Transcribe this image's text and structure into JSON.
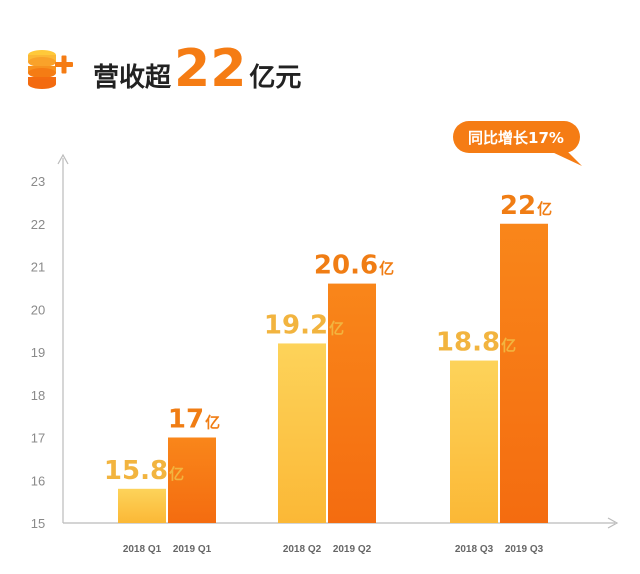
{
  "header": {
    "title_prefix": "营收超",
    "title_number": "22",
    "title_suffix": "亿元",
    "icon": "coin-stack-plus-icon"
  },
  "callout": {
    "text": "同比增长17%"
  },
  "colors": {
    "accent": "#f57c14",
    "bar_2018": "#fdc74a",
    "bar_2019": "#f57c14",
    "label_2018": "#f2b43f",
    "label_2019": "#f07d14",
    "axis": "#bbbbbb"
  },
  "chart_data": {
    "type": "bar",
    "ylim": [
      15,
      23
    ],
    "yticks": [
      15,
      16,
      17,
      18,
      19,
      20,
      21,
      22,
      23
    ],
    "groups": [
      {
        "bars": [
          {
            "category": "2018 Q1",
            "value": 15.8,
            "label": "15.8",
            "unit": "亿",
            "series": "2018"
          },
          {
            "category": "2019 Q1",
            "value": 17,
            "label": "17",
            "unit": "亿",
            "series": "2019"
          }
        ]
      },
      {
        "bars": [
          {
            "category": "2018 Q2",
            "value": 19.2,
            "label": "19.2",
            "unit": "亿",
            "series": "2018"
          },
          {
            "category": "2019 Q2",
            "value": 20.6,
            "label": "20.6",
            "unit": "亿",
            "series": "2019"
          }
        ]
      },
      {
        "bars": [
          {
            "category": "2018 Q3",
            "value": 18.8,
            "label": "18.8",
            "unit": "亿",
            "series": "2018"
          },
          {
            "category": "2019 Q3",
            "value": 22,
            "label": "22",
            "unit": "亿",
            "series": "2019"
          }
        ]
      }
    ],
    "grid": false
  }
}
